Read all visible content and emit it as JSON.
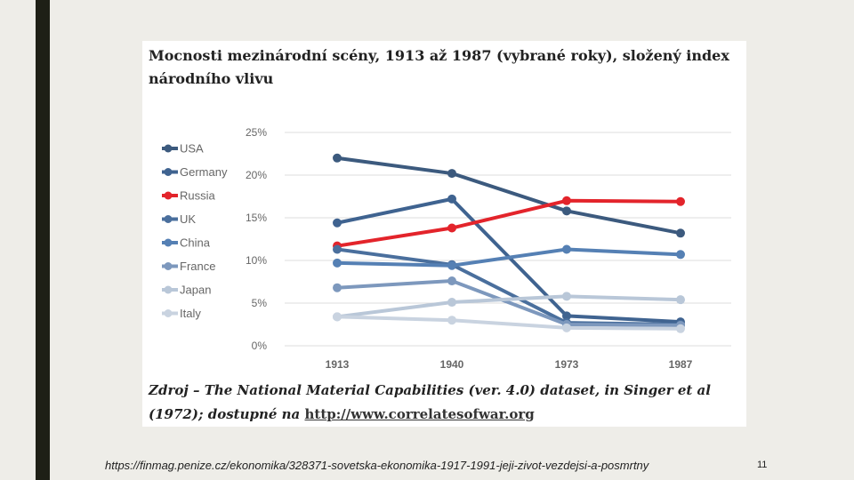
{
  "slide": {
    "footer_url": "https://finmag.penize.cz/ekonomika/328371-sovetska-ekonomika-1917-1991-jeji-zivot-vezdejsi-a-posmrtny",
    "page_number": "11"
  },
  "card": {
    "title": "Mocnosti mezinárodní scény, 1913 až 1987 (vybrané roky), složený index národního vlivu",
    "source_text": "Zdroj – The National Material Capabilities (ver. 4.0) dataset, in Singer et al (1972); dostupné na ",
    "source_link": "http://www.correlatesofwar.org"
  },
  "chart_data": {
    "type": "line",
    "categories": [
      "1913",
      "1940",
      "1973",
      "1987"
    ],
    "y_ticks": [
      "0%",
      "5%",
      "10%",
      "15%",
      "20%",
      "25%"
    ],
    "ylim": [
      0,
      25
    ],
    "grid": true,
    "legend_position": "left",
    "series": [
      {
        "name": "USA",
        "color": "#3c5a7e",
        "values": [
          22.0,
          20.2,
          15.8,
          13.2
        ]
      },
      {
        "name": "Germany",
        "color": "#3f6390",
        "values": [
          14.4,
          17.2,
          3.5,
          2.8
        ]
      },
      {
        "name": "Russia",
        "color": "#e3242b",
        "values": [
          11.7,
          13.8,
          17.0,
          16.9
        ]
      },
      {
        "name": "UK",
        "color": "#4a6f9d",
        "values": [
          11.3,
          9.5,
          2.7,
          2.5
        ]
      },
      {
        "name": "China",
        "color": "#5580b4",
        "values": [
          9.7,
          9.4,
          11.3,
          10.7
        ]
      },
      {
        "name": "France",
        "color": "#7d98bd",
        "values": [
          6.8,
          7.6,
          2.5,
          2.4
        ]
      },
      {
        "name": "Japan",
        "color": "#b9c7d8",
        "values": [
          3.4,
          5.1,
          5.8,
          5.4
        ]
      },
      {
        "name": "Italy",
        "color": "#c9d3e0",
        "values": [
          3.4,
          3.0,
          2.1,
          2.0
        ]
      }
    ]
  }
}
